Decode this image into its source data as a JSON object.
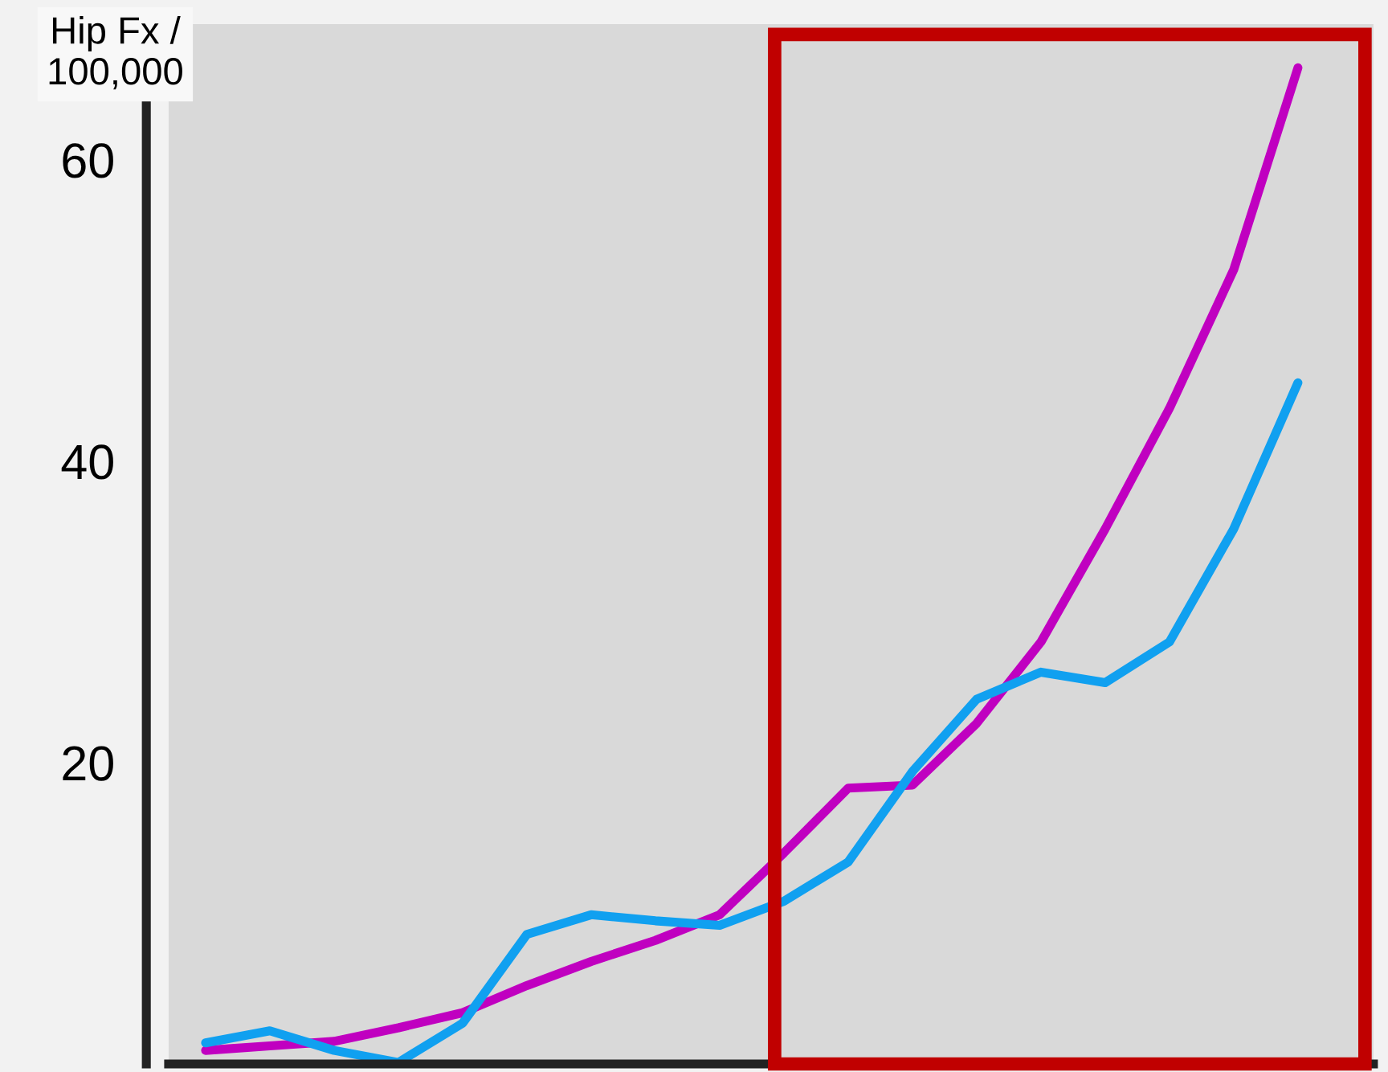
{
  "chart_data": {
    "type": "line",
    "ylabel": "Hip Fx /\n100,000",
    "categories": [
      null,
      null,
      null,
      null,
      null,
      null,
      null,
      null,
      null,
      null,
      null,
      null,
      null,
      null,
      null,
      null,
      null,
      null
    ],
    "series": [
      {
        "color": "#c000c0",
        "values": [
          0.9,
          1.2,
          1.5,
          2.4,
          3.4,
          5.2,
          6.8,
          8.2,
          9.9,
          14.0,
          18.3,
          18.5,
          22.6,
          28.0,
          35.5,
          43.5,
          52.7,
          66.1
        ]
      },
      {
        "color": "#10a0f0",
        "values": [
          1.4,
          2.2,
          0.9,
          0.1,
          2.7,
          8.6,
          9.9,
          9.5,
          9.2,
          10.8,
          13.4,
          19.4,
          24.2,
          26.0,
          25.3,
          28.0,
          35.5,
          45.2
        ]
      }
    ],
    "ylim": [
      0,
      69
    ],
    "yticks": [
      20,
      40,
      60
    ],
    "grid": false,
    "legend": false,
    "marker": "none",
    "line_style": "solid"
  }
}
